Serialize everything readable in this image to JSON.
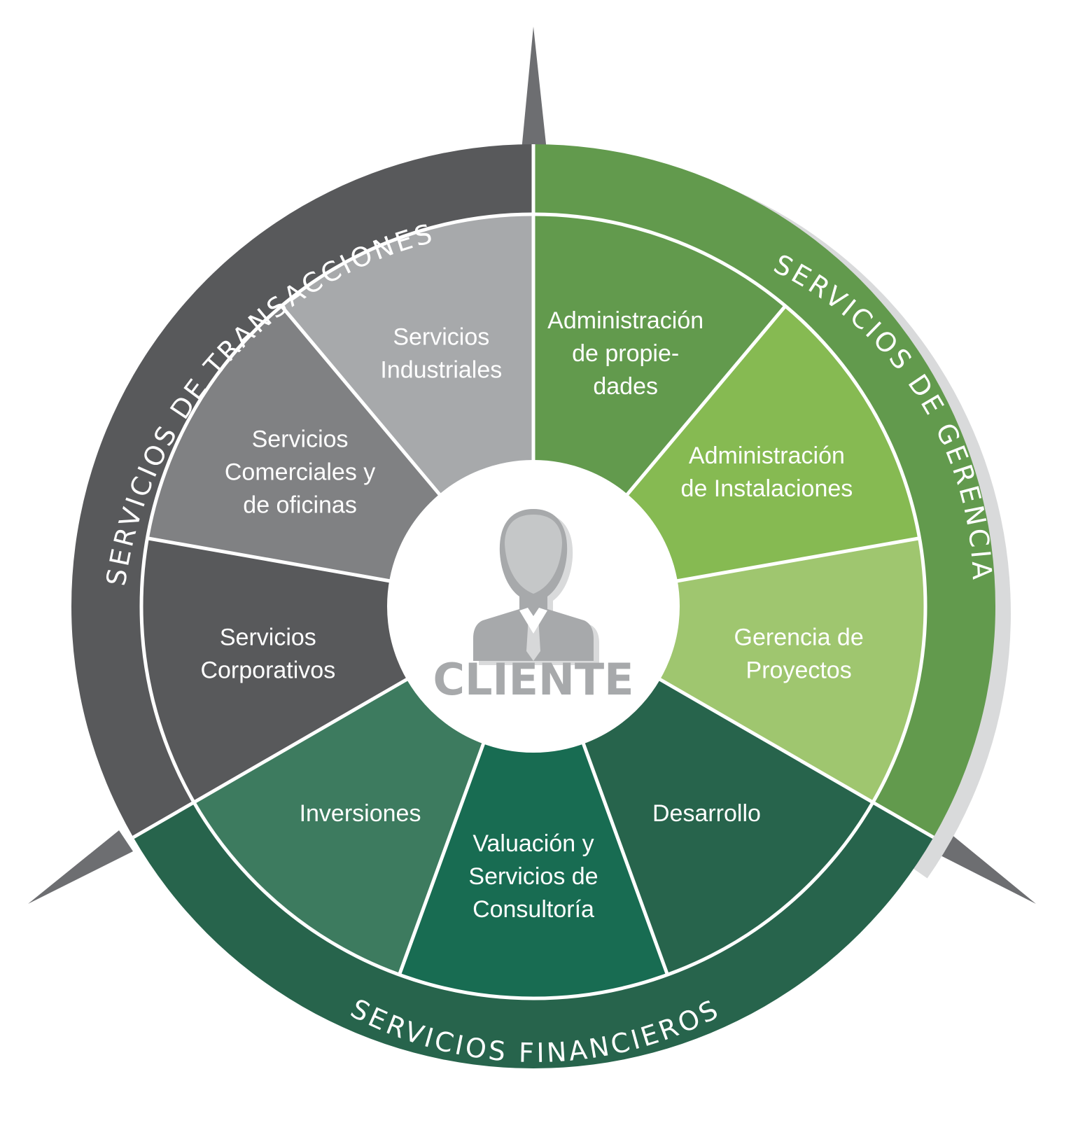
{
  "center": {
    "label": "CLIENTE",
    "icon": "person-in-suit-icon",
    "icon_color": "#a7a9ab"
  },
  "rings": [
    {
      "id": "transacciones",
      "label": "SERVICIOS DE TRANSACCIONES",
      "color": "#58595b"
    },
    {
      "id": "gerencia",
      "label": "SERVICIOS DE GERENCIA",
      "color": "#629a4d"
    },
    {
      "id": "financieros",
      "label": "SERVICIOS FINANCIEROS",
      "color": "#27644c"
    }
  ],
  "segments": [
    {
      "lines": [
        "Administración",
        "de propie-",
        "dades"
      ],
      "color": "#629a4d"
    },
    {
      "lines": [
        "Administración",
        "de Instalaciones"
      ],
      "color": "#86ba52"
    },
    {
      "lines": [
        "Gerencia de",
        "Proyectos"
      ],
      "color": "#9fc66f"
    },
    {
      "lines": [
        "Desarrollo"
      ],
      "color": "#27644c"
    },
    {
      "lines": [
        "Valuación y",
        "Servicios de",
        "Consultoría"
      ],
      "color": "#186c52"
    },
    {
      "lines": [
        "Inversiones"
      ],
      "color": "#3d7b5f"
    },
    {
      "lines": [
        "Servicios",
        "Corporativos"
      ],
      "color": "#58595b"
    },
    {
      "lines": [
        "Servicios",
        "Comerciales y",
        "de oficinas"
      ],
      "color": "#808183"
    },
    {
      "lines": [
        "Servicios",
        "Industriales"
      ],
      "color": "#a7a9ab"
    }
  ],
  "colors": {
    "pointer": "#6d6e71",
    "shadow": "#d9dadb",
    "divider": "#ffffff",
    "center_fill": "#ffffff"
  }
}
